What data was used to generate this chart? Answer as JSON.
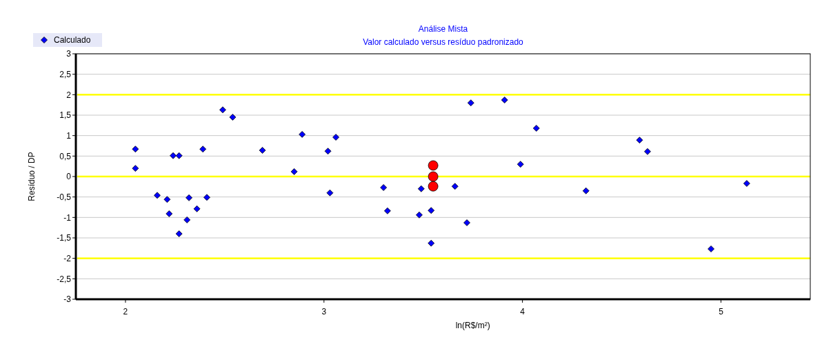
{
  "chart_data": {
    "type": "scatter",
    "title": "Análise Mista",
    "subtitle": "Valor calculado versus resíduo padronizado",
    "xlabel": "ln(R$/m²)",
    "ylabel": "Resíduo / DP",
    "series": [
      {
        "name": "Calculado",
        "color": "#0000ff",
        "marker": "diamond",
        "x": [
          2.05,
          2.05,
          2.16,
          2.21,
          2.22,
          2.24,
          2.27,
          2.27,
          2.31,
          2.32,
          2.36,
          2.39,
          2.41,
          2.49,
          2.54,
          2.69,
          2.85,
          2.89,
          3.02,
          3.03,
          3.06,
          3.3,
          3.32,
          3.48,
          3.49,
          3.54,
          3.54,
          3.66,
          3.72,
          3.74,
          3.91,
          3.99,
          4.07,
          4.32,
          4.59,
          4.63,
          4.95,
          5.13
        ],
        "values": [
          0.67,
          0.2,
          -0.46,
          -0.56,
          -0.91,
          0.51,
          0.51,
          -1.4,
          -1.06,
          -0.52,
          -0.79,
          0.67,
          -0.51,
          1.63,
          1.45,
          0.64,
          0.12,
          1.03,
          0.62,
          -0.4,
          0.96,
          -0.27,
          -0.84,
          -0.94,
          -0.3,
          -0.83,
          -1.63,
          -0.24,
          -1.13,
          1.8,
          1.87,
          0.3,
          1.18,
          -0.35,
          0.89,
          0.61,
          -1.77,
          -0.17
        ]
      },
      {
        "color": "#ff0000",
        "marker": "circle",
        "x": [
          3.55,
          3.55,
          3.55
        ],
        "values": [
          0.27,
          0,
          -0.24
        ]
      }
    ],
    "xlim": [
      1.75,
      5.45
    ],
    "xticks": [
      2,
      3,
      4,
      5
    ],
    "ylim": [
      -3,
      3
    ],
    "yticks": [
      {
        "value": -3,
        "label": "-3"
      },
      {
        "value": -2.5,
        "label": "-2,5"
      },
      {
        "value": -2,
        "label": "-2"
      },
      {
        "value": -1.5,
        "label": "-1,5"
      },
      {
        "value": -1,
        "label": "-1"
      },
      {
        "value": -0.5,
        "label": "-0,5"
      },
      {
        "value": 0,
        "label": "0"
      },
      {
        "value": 0.5,
        "label": "0,5"
      },
      {
        "value": 1,
        "label": "1"
      },
      {
        "value": 1.5,
        "label": "1,5"
      },
      {
        "value": 2,
        "label": "2"
      },
      {
        "value": 2.5,
        "label": "2,5"
      },
      {
        "value": 3,
        "label": "3"
      }
    ],
    "grid": "y",
    "legend": "top left",
    "ref_lines": [
      {
        "axis": "y",
        "value": 2,
        "color": "#ffff00"
      },
      {
        "axis": "y",
        "value": 0,
        "color": "#ffff00"
      },
      {
        "axis": "y",
        "value": -2,
        "color": "#ffff00"
      }
    ]
  }
}
